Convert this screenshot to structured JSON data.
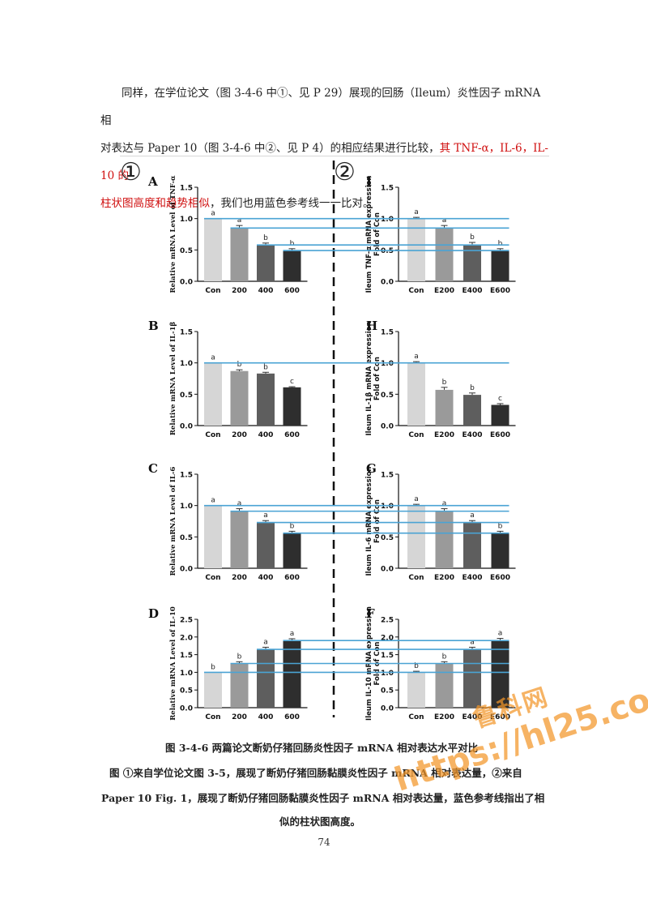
{
  "paragraph": {
    "line1": "同样，在学位论文（图 3-4-6 中①、见 P 29）展现的回肠（Ileum）炎性因子 mRNA 相",
    "line2_normal": "对表达与 Paper 10（图 3-4-6 中②、见 P 4）的相应结果进行比较，",
    "line2_red": "其 TNF-α，IL-6，IL-10 的",
    "line3_red": "柱状图高度和趋势相似",
    "line3_normal": "，我们也用蓝色参考线一一比对。"
  },
  "figure": {
    "left_marker": "①",
    "right_marker": "②",
    "colors": {
      "bar": [
        "#d6d6d6",
        "#9a9a9a",
        "#5e5e5e",
        "#2e2e2e"
      ],
      "reference_line": "#4aa3d4",
      "divider": "#111111"
    },
    "left_panels": [
      {
        "letter": "A",
        "ylabel": "Relative mRNA Level of TNF-α",
        "categories": [
          "Con",
          "200",
          "400",
          "600"
        ],
        "ticks": [
          "0.0",
          "0.5",
          "1.0",
          "1.5"
        ],
        "ymax": 1.5,
        "values": [
          1.0,
          0.85,
          0.58,
          0.49
        ],
        "errors": [
          0.0,
          0.04,
          0.03,
          0.03
        ],
        "sig": [
          "a",
          "a",
          "b",
          "b"
        ]
      },
      {
        "letter": "B",
        "ylabel": "Relative mRNA Level of IL-1β",
        "categories": [
          "Con",
          "200",
          "400",
          "600"
        ],
        "ticks": [
          "0.0",
          "0.5",
          "1.0",
          "1.5"
        ],
        "ymax": 1.5,
        "values": [
          1.0,
          0.87,
          0.83,
          0.61
        ],
        "errors": [
          0.0,
          0.02,
          0.02,
          0.01
        ],
        "sig": [
          "a",
          "b",
          "b",
          "c"
        ]
      },
      {
        "letter": "C",
        "ylabel": "Relative mRNA Level of IL-6",
        "categories": [
          "Con",
          "200",
          "400",
          "600"
        ],
        "ticks": [
          "0.0",
          "0.5",
          "1.0",
          "1.5"
        ],
        "ymax": 1.5,
        "values": [
          1.0,
          0.91,
          0.73,
          0.56
        ],
        "errors": [
          0.0,
          0.04,
          0.03,
          0.03
        ],
        "sig": [
          "a",
          "a",
          "a",
          "b"
        ]
      },
      {
        "letter": "D",
        "ylabel": "Relative mRNA Level of IL-10",
        "categories": [
          "Con",
          "200",
          "400",
          "600"
        ],
        "ticks": [
          "0.0",
          "0.5",
          "1.0",
          "1.5",
          "2.0",
          "2.5"
        ],
        "ymax": 2.5,
        "values": [
          1.0,
          1.25,
          1.65,
          1.9
        ],
        "errors": [
          0.0,
          0.05,
          0.06,
          0.05
        ],
        "sig": [
          "b",
          "b",
          "a",
          "a"
        ]
      }
    ],
    "right_panels": [
      {
        "letter": "I",
        "ylabel_line1": "Ileum TNF-α mRNA expression",
        "ylabel_line2": "Fold of Con",
        "categories": [
          "Con",
          "E200",
          "E400",
          "E600"
        ],
        "ticks": [
          "0.0",
          "0.5",
          "1.0",
          "1.5"
        ],
        "ymax": 1.5,
        "values": [
          1.0,
          0.85,
          0.57,
          0.49
        ],
        "errors": [
          0.02,
          0.04,
          0.05,
          0.03
        ],
        "sig": [
          "a",
          "a",
          "b",
          "b"
        ]
      },
      {
        "letter": "H",
        "ylabel_line1": "Ileum IL-1β mRNA expression",
        "ylabel_line2": "Fold of Con",
        "categories": [
          "Con",
          "E200",
          "E400",
          "E600"
        ],
        "ticks": [
          "0.0",
          "0.5",
          "1.0",
          "1.5"
        ],
        "ymax": 1.5,
        "values": [
          1.0,
          0.57,
          0.49,
          0.33
        ],
        "errors": [
          0.02,
          0.04,
          0.03,
          0.02
        ],
        "sig": [
          "a",
          "b",
          "b",
          "c"
        ]
      },
      {
        "letter": "G",
        "ylabel_line1": "Ileum IL-6 mRNA expression",
        "ylabel_line2": "Fold of Con",
        "categories": [
          "Con",
          "E200",
          "E400",
          "E600"
        ],
        "ticks": [
          "0.0",
          "0.5",
          "1.0",
          "1.5"
        ],
        "ymax": 1.5,
        "values": [
          1.0,
          0.91,
          0.73,
          0.56
        ],
        "errors": [
          0.02,
          0.04,
          0.03,
          0.03
        ],
        "sig": [
          "a",
          "a",
          "a",
          "b"
        ]
      },
      {
        "letter": "F",
        "ylabel_line1": "Ileum IL-10 mRNA expression",
        "ylabel_line2": "Fold of Con",
        "categories": [
          "Con",
          "E200",
          "E400",
          "E600"
        ],
        "ticks": [
          "0.0",
          "0.5",
          "1.0",
          "1.5",
          "2.0",
          "2.5"
        ],
        "ymax": 2.5,
        "values": [
          1.0,
          1.25,
          1.65,
          1.9
        ],
        "errors": [
          0.03,
          0.05,
          0.06,
          0.06
        ],
        "sig": [
          "b",
          "b",
          "a",
          "a"
        ]
      }
    ]
  },
  "caption": {
    "line1": "图 3-4-6  两篇论文断奶仔猪回肠炎性因子 mRNA 相对表达水平对比",
    "line2": "图 ①来自学位论文图 3-5，展现了断奶仔猪回肠黏膜炎性因子 mRNA 相对表达量，②来自",
    "line3": "Paper 10 Fig. 1，展现了断奶仔猪回肠黏膜炎性因子 mRNA 相对表达量，蓝色参考线指出了相",
    "line4": "似的柱状图高度。"
  },
  "page_number": "74",
  "watermark": {
    "line1": "鲁科网",
    "line2": "https://hl25.co"
  }
}
